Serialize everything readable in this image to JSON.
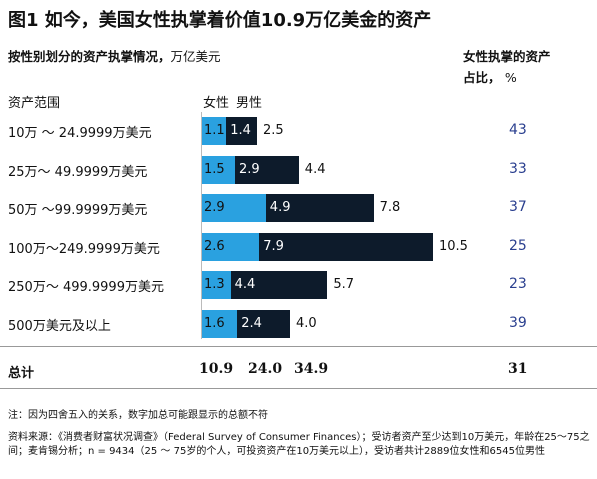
{
  "title": "图1 如今，美国女性执掌着价值10.9万亿美金的资产",
  "subtitle": "按性别划分的资产执掌情况，",
  "subtitle_unit": "万亿美元",
  "share_title_line1": "女性执掌的资产",
  "share_title_line2": "占比，",
  "share_title_unit": "%",
  "column_label": "资产范围",
  "colors": {
    "female": "#2aa1e0",
    "male": "#0d1b2b",
    "share_text": "#2a3f8f"
  },
  "chart_data": {
    "type": "bar",
    "orientation": "horizontal",
    "stacked": true,
    "title": "按性别划分的资产执掌情况",
    "unit": "万亿美元",
    "categories": [
      "10万 ～ 24.9999万美元",
      "25万～ 49.9999万美元",
      "50万 ～99.9999万美元",
      "100万～249.9999万美元",
      "250万～ 499.9999万美元",
      "500万美元及以上"
    ],
    "series": [
      {
        "name": "女性",
        "values": [
          1.1,
          1.5,
          2.9,
          2.6,
          1.3,
          1.6
        ]
      },
      {
        "name": "男性",
        "values": [
          1.4,
          2.9,
          4.9,
          7.9,
          4.4,
          2.4
        ]
      }
    ],
    "row_totals": [
      2.5,
      4.4,
      7.8,
      10.5,
      5.7,
      4.0
    ],
    "female_share_pct": [
      43,
      33,
      37,
      25,
      23,
      39
    ],
    "legend": [
      "女性",
      "男性"
    ],
    "legend_position": "top",
    "grid": false
  },
  "totals": {
    "label": "总计",
    "female": "10.9",
    "male": "24.0",
    "all": "34.9",
    "share": "31"
  },
  "note": "注：因为四舍五入的关系，数字加总可能跟显示的总额不符",
  "source": "资料来源：《消费者财富状况调查》（Federal Survey of Consumer Finances）；受访者资产至少达到10万美元，年龄在25～75之间；麦肯锡分析；n = 9434（25 ～ 75岁的个人，可投资资产在10万美元以上），受访者共计2889位女性和6545位男性"
}
